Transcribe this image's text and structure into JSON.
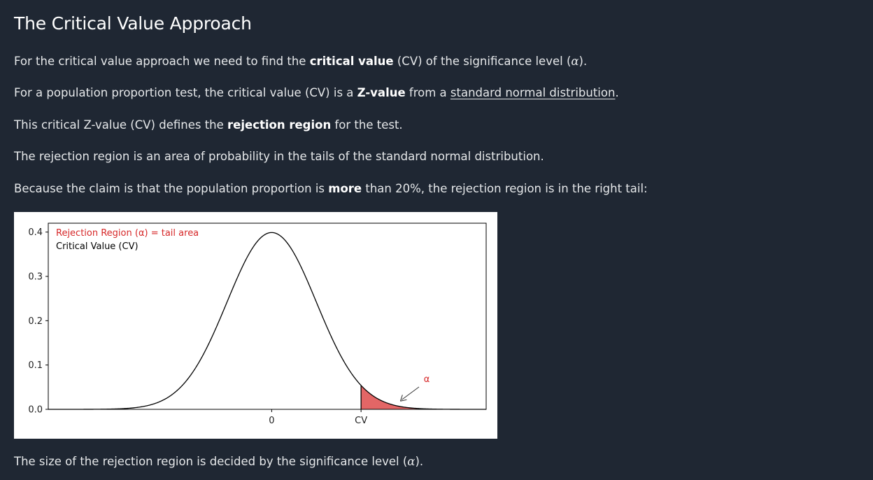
{
  "heading": "The Critical Value Approach",
  "p1": {
    "a": "For the critical value approach we need to find the ",
    "b": "critical value",
    "c": " (CV) of the significance level (",
    "sym": "α",
    "d": ")."
  },
  "p2": {
    "a": "For a population proportion test, the critical value (CV) is a ",
    "b": "Z-value",
    "c": " from a ",
    "link": "standard normal distribution",
    "d": "."
  },
  "p3": {
    "a": "This critical Z-value (CV) defines the ",
    "b": "rejection region",
    "c": " for the test."
  },
  "p4": "The rejection region is an area of probability in the tails of the standard normal distribution.",
  "p5": {
    "a": "Because the claim is that the population proportion is ",
    "b": "more",
    "c": " than 20%, the rejection region is in the right tail:"
  },
  "p6": {
    "a": "The size of the rejection region is decided by the significance level (",
    "sym": "α",
    "b": ")."
  },
  "chart_data": {
    "type": "area",
    "title": "",
    "xlabel": "",
    "ylabel": "",
    "x_ticks": [
      "0",
      "CV"
    ],
    "y_ticks": [
      "0.0",
      "0.1",
      "0.2",
      "0.3",
      "0.4"
    ],
    "ylim": [
      0,
      0.42
    ],
    "xlim": [
      -5.0,
      4.8
    ],
    "curve": "standard normal density",
    "critical_value": 2.0,
    "legend": [
      {
        "label": "Rejection Region (α) = tail area",
        "color": "#d62728"
      },
      {
        "label": "Critical Value (CV)",
        "color": "#000000"
      }
    ],
    "legend_placement": "top-left",
    "annotation": "α",
    "fill_color": "#e36666",
    "grid": false
  }
}
